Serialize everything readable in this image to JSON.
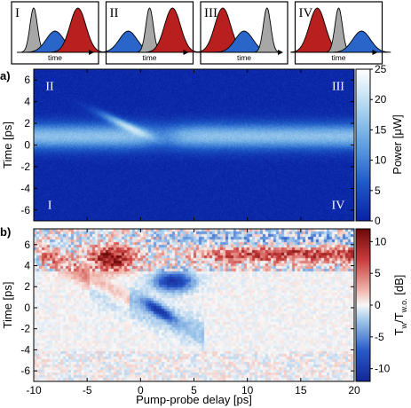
{
  "chart_data": [
    {
      "type": "schematic",
      "panels": [
        {
          "label": "I",
          "xlabel": "time",
          "order": [
            "gray",
            "blue",
            "red"
          ]
        },
        {
          "label": "II",
          "xlabel": "time",
          "order": [
            "blue",
            "gray",
            "red"
          ]
        },
        {
          "label": "III",
          "xlabel": "time",
          "order": [
            "red",
            "blue",
            "gray"
          ]
        },
        {
          "label": "IV",
          "xlabel": "time",
          "order": [
            "red",
            "gray",
            "blue"
          ]
        }
      ],
      "colors": {
        "gray": "#a7a7a7",
        "blue": "#2a66c9",
        "red": "#b81f1f"
      }
    },
    {
      "type": "heatmap",
      "panel_label": "a)",
      "ylabel": "Time [ps]",
      "xlim": [
        -10,
        20
      ],
      "ylim": [
        -7,
        7
      ],
      "yticks": [
        -6,
        -4,
        -2,
        0,
        2,
        4,
        6
      ],
      "region_labels": [
        {
          "text": "I",
          "x": -8.5,
          "y": -5.5
        },
        {
          "text": "II",
          "x": -8.5,
          "y": 5.5
        },
        {
          "text": "III",
          "x": 18.5,
          "y": 5.5
        },
        {
          "text": "IV",
          "x": 18.5,
          "y": -5.5
        }
      ],
      "colorbar": {
        "label": "Power [μW]",
        "range": [
          0,
          25
        ],
        "ticks": [
          0,
          5,
          10,
          15,
          20,
          25
        ]
      },
      "features": {
        "main_band_center": 0.8,
        "main_band_width": 1.2,
        "streak": {
          "x": [
            -4,
            2
          ],
          "y": [
            3.0,
            0.3
          ],
          "peak": 25
        }
      }
    },
    {
      "type": "heatmap",
      "panel_label": "b)",
      "xlabel": "Pump-probe delay [ps]",
      "ylabel": "Time [ps]",
      "xlim": [
        -10,
        20
      ],
      "ylim": [
        -7,
        7.5
      ],
      "xticks": [
        -10,
        -5,
        0,
        5,
        10,
        15,
        20
      ],
      "yticks": [
        -6,
        -4,
        -2,
        0,
        2,
        4,
        6
      ],
      "colorbar": {
        "label": "Tw/Tw.o. [dB]",
        "label_parts": [
          "T",
          "w",
          "/T",
          "w.o.",
          " [dB]"
        ],
        "range": [
          -12,
          12
        ],
        "ticks": [
          -10,
          -5,
          0,
          5,
          10
        ]
      },
      "features": {
        "red_lobe": {
          "x": -2.8,
          "y": 4.8,
          "value": 11
        },
        "blue_lobe": {
          "x": 3.0,
          "y": 2.6,
          "value": -11
        },
        "blue_streak": {
          "x": [
            0.5,
            3.0
          ],
          "y": [
            0.5,
            -1.0
          ],
          "value": -9
        },
        "red_band_y": 5.2
      }
    }
  ]
}
